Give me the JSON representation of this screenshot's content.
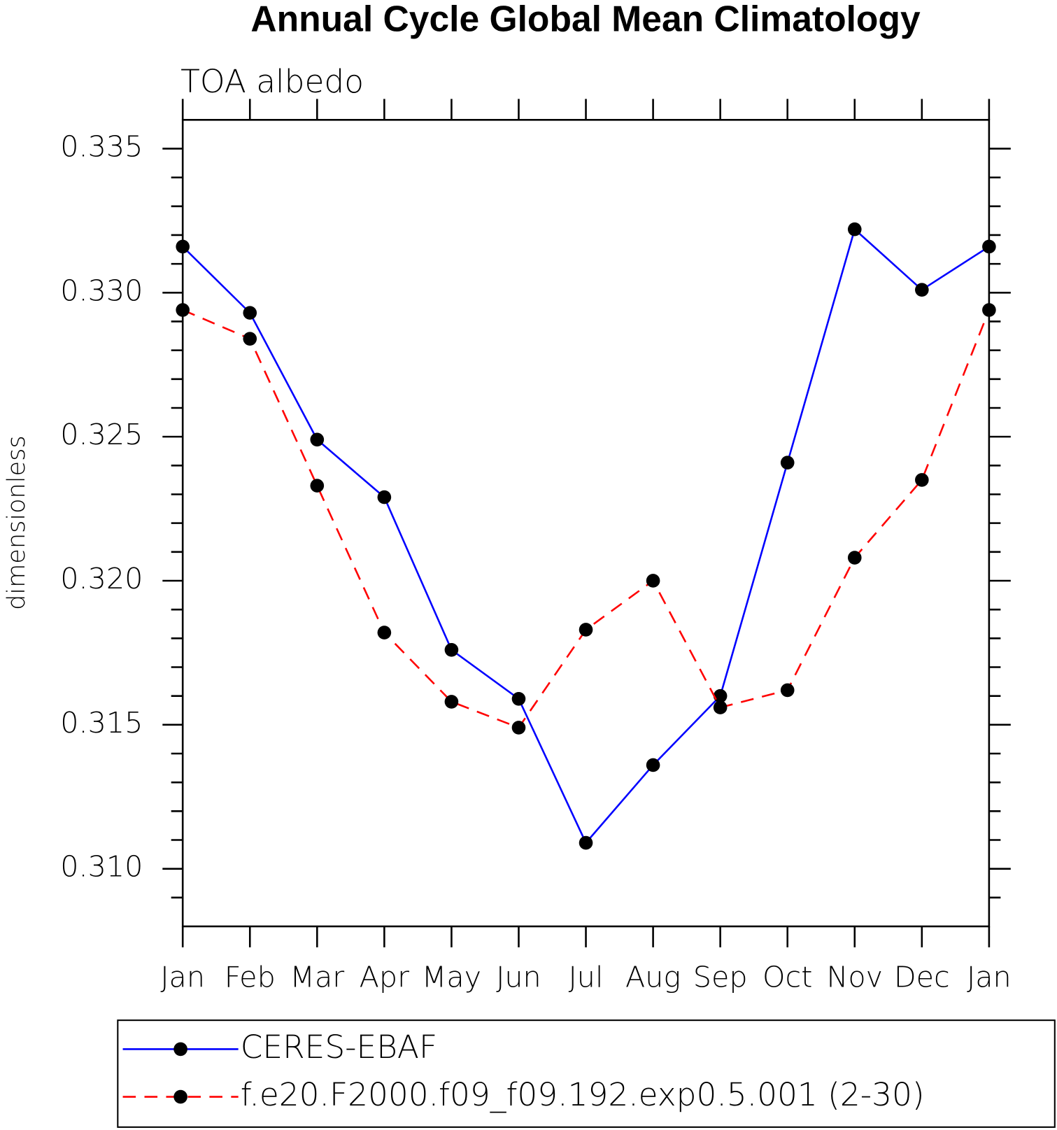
{
  "chart_data": {
    "type": "line",
    "title": "Annual Cycle Global Mean Climatology",
    "subtitle": "TOA albedo",
    "ylabel": "dimensionless",
    "categories": [
      "Jan",
      "Feb",
      "Mar",
      "Apr",
      "May",
      "Jun",
      "Jul",
      "Aug",
      "Sep",
      "Oct",
      "Nov",
      "Dec",
      "Jan"
    ],
    "series": [
      {
        "name": "CERES-EBAF",
        "color": "#0000ff",
        "dash": false,
        "marker_color": "#000000",
        "values": [
          0.3316,
          0.3293,
          0.3249,
          0.3229,
          0.3176,
          0.3159,
          0.3109,
          0.3136,
          0.316,
          0.3241,
          0.3322,
          0.3301,
          0.3316
        ]
      },
      {
        "name": "f.e20.F2000.f09_f09.192.exp0.5.001 (2-30)",
        "color": "#ff0000",
        "dash": true,
        "marker_color": "#000000",
        "values": [
          0.3294,
          0.3284,
          0.3233,
          0.3182,
          0.3158,
          0.3149,
          0.3183,
          0.32,
          0.3156,
          0.3162,
          0.3208,
          0.3235,
          0.3294
        ]
      }
    ],
    "ylim": [
      0.308,
      0.336
    ],
    "yticks": [
      {
        "value": 0.31,
        "label": "0.310"
      },
      {
        "value": 0.315,
        "label": "0.315"
      },
      {
        "value": 0.32,
        "label": "0.320"
      },
      {
        "value": 0.325,
        "label": "0.325"
      },
      {
        "value": 0.33,
        "label": "0.330"
      },
      {
        "value": 0.335,
        "label": "0.335"
      }
    ],
    "yminorticks": [
      0.309,
      0.311,
      0.312,
      0.313,
      0.314,
      0.316,
      0.317,
      0.318,
      0.319,
      0.321,
      0.322,
      0.323,
      0.324,
      0.326,
      0.327,
      0.328,
      0.329,
      0.331,
      0.332,
      0.333,
      0.334
    ],
    "grid": false
  }
}
